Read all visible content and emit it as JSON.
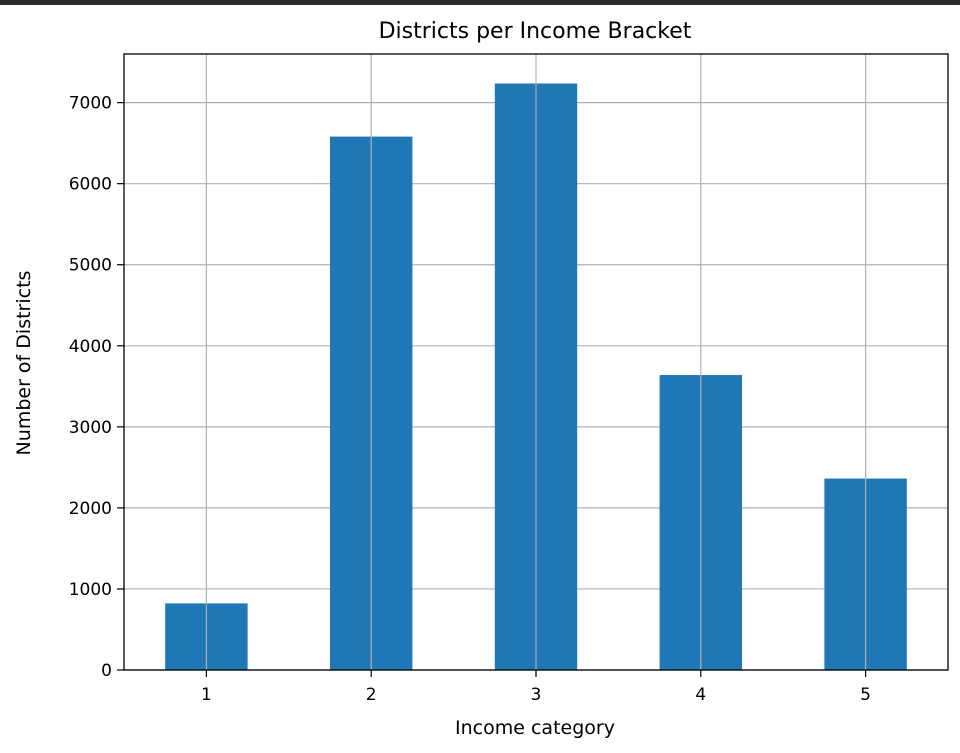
{
  "chart_data": {
    "type": "bar",
    "title": "Districts per Income Bracket",
    "xlabel": "Income category",
    "ylabel": "Number of Districts",
    "categories": [
      "1",
      "2",
      "3",
      "4",
      "5"
    ],
    "values": [
      822,
      6581,
      7236,
      3639,
      2362
    ],
    "ylim": [
      0,
      7600
    ],
    "yticks": [
      0,
      1000,
      2000,
      3000,
      4000,
      5000,
      6000,
      7000
    ],
    "grid": true,
    "bar_color": "#1f77b4",
    "grid_color": "#b0b0b0"
  }
}
